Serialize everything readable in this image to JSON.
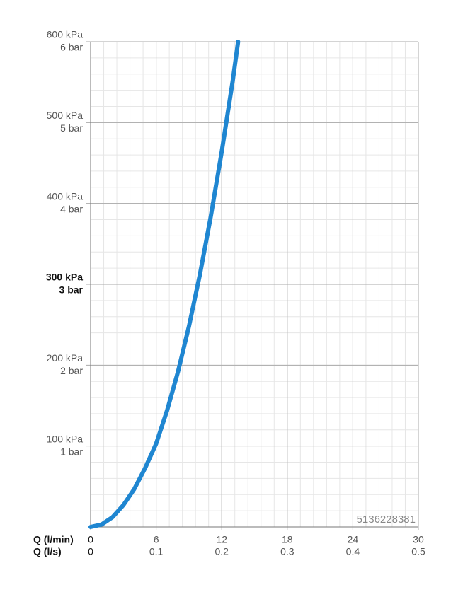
{
  "chart_data": {
    "type": "line",
    "x_label": "Q (l/min)",
    "x2_label": "Q (l/s)",
    "x": [
      0,
      1,
      2,
      3,
      4,
      5,
      6,
      7,
      8,
      9,
      10,
      11,
      12,
      13,
      13.5
    ],
    "series": [
      {
        "color": "#1f86d1",
        "values": [
          0,
          3,
          12,
          27,
          47,
          73,
          103,
          144,
          192,
          248,
          312,
          384,
          464,
          551,
          600
        ]
      }
    ],
    "xlim": [
      0,
      30
    ],
    "xticks": [
      0,
      6,
      12,
      18,
      24,
      30
    ],
    "x2lim": [
      0,
      0.5
    ],
    "x2ticks": [
      0,
      0.1,
      0.2,
      0.3,
      0.4,
      0.5
    ],
    "ylim": [
      0,
      600
    ],
    "yticks": [
      {
        "value": 100,
        "label": "100 kPa",
        "bar_label": "1 bar"
      },
      {
        "value": 200,
        "label": "200 kPa",
        "bar_label": "2 bar"
      },
      {
        "value": 300,
        "label": "300 kPa",
        "bar_label": "3 bar"
      },
      {
        "value": 400,
        "label": "400 kPa",
        "bar_label": "4 bar"
      },
      {
        "value": 500,
        "label": "500 kPa",
        "bar_label": "5 bar"
      },
      {
        "value": 600,
        "label": "600 kPa",
        "bar_label": "6 bar"
      }
    ],
    "highlight_ytick": 300,
    "grid": true,
    "annotation": "5136228381"
  }
}
